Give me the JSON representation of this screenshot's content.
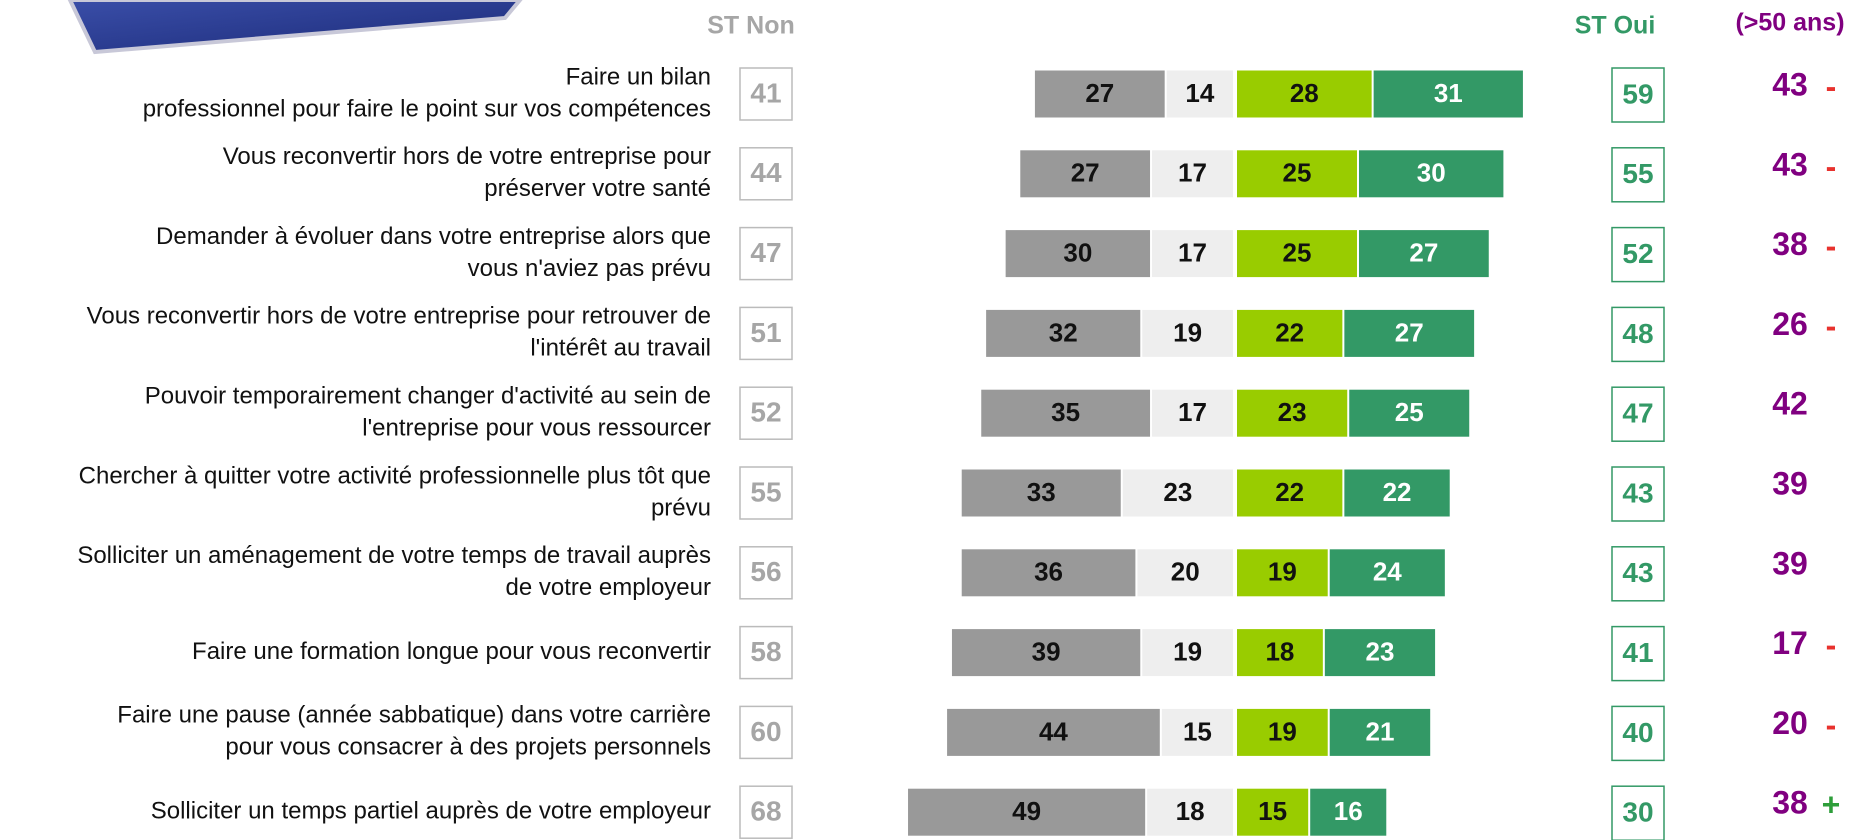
{
  "chart_data": {
    "type": "diverging-bar",
    "st_non_header": "ST Non",
    "st_oui_header": "ST Oui",
    "older_header": "(>50 ans)",
    "categories": [
      [
        "Faire un bilan",
        "professionnel pour faire le point sur vos compétences"
      ],
      [
        "Vous reconvertir hors de votre entreprise pour",
        "préserver votre santé"
      ],
      [
        "Demander à évoluer dans votre entreprise alors que",
        "vous n'aviez pas prévu"
      ],
      [
        "Vous reconvertir hors de votre entreprise pour retrouver de",
        "l'intérêt au travail"
      ],
      [
        "Pouvoir temporairement changer d'activité au sein de",
        "l'entreprise pour vous ressourcer"
      ],
      [
        "Chercher à quitter votre activité professionnelle plus tôt que",
        "prévu"
      ],
      [
        "Solliciter un aménagement de votre temps de travail auprès",
        "de votre employeur"
      ],
      [
        "Faire une formation longue pour vous reconvertir"
      ],
      [
        "Faire une pause (année sabbatique) dans votre carrière",
        "pour vous consacrer à des projets personnels"
      ],
      [
        "Solliciter un temps partiel auprès de votre employeur"
      ]
    ],
    "series": [
      {
        "color": "#999999",
        "text_color": "#111111",
        "values": [
          27,
          27,
          30,
          32,
          35,
          33,
          36,
          39,
          44,
          49
        ]
      },
      {
        "color": "#eeeeee",
        "text_color": "#111111",
        "values": [
          14,
          17,
          17,
          19,
          17,
          23,
          20,
          19,
          15,
          18
        ]
      },
      {
        "color": "#99cc00",
        "text_color": "#111111",
        "values": [
          28,
          25,
          25,
          22,
          23,
          22,
          19,
          18,
          19,
          15
        ]
      },
      {
        "color": "#339966",
        "text_color": "#ffffff",
        "values": [
          31,
          30,
          27,
          27,
          25,
          22,
          24,
          23,
          21,
          16
        ]
      }
    ],
    "st_non": {
      "color": "#a6a6a6",
      "values": [
        41,
        44,
        47,
        51,
        52,
        55,
        56,
        58,
        60,
        68
      ]
    },
    "st_oui": {
      "color": "#339966",
      "values": [
        59,
        55,
        52,
        48,
        47,
        43,
        43,
        41,
        40,
        30
      ]
    },
    "older": {
      "values": [
        43,
        43,
        38,
        26,
        42,
        39,
        39,
        17,
        20,
        38
      ],
      "signs": [
        "-",
        "-",
        "-",
        "-",
        null,
        null,
        null,
        "-",
        "-",
        "+"
      ],
      "sign_colors": {
        "-": "#e8322e",
        "+": "#2e9e3a"
      }
    }
  }
}
